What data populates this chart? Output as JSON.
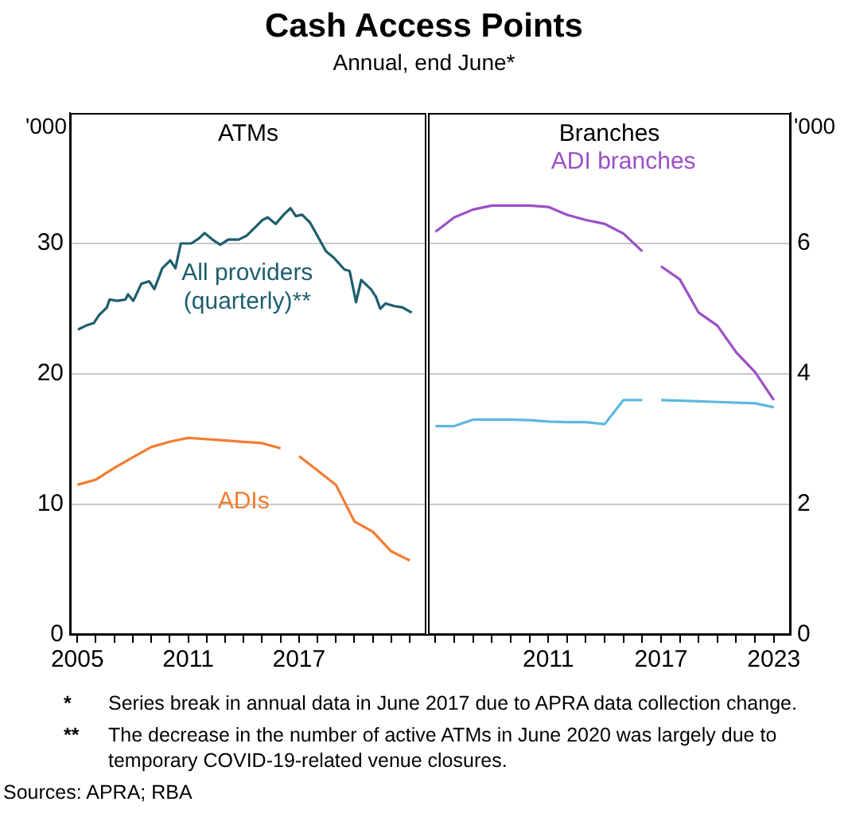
{
  "chart_data": [
    {
      "type": "other",
      "title": "Cash Access Points",
      "subtitle": "Annual, end June*",
      "annotations": [
        "* Series break in annual data in June 2017 due to APRA data collection change.",
        "** The decrease in the number of active ATMs in June 2020 was largely due to temporary COVID-19-related venue closures.",
        "Sources: APRA; RBA"
      ]
    },
    {
      "type": "line",
      "title": "ATMs",
      "ylabel": "'000",
      "xlim": [
        2004.6,
        2023.9
      ],
      "xticks": [
        2005,
        {
          "value": 2006,
          "label": null
        },
        {
          "value": 2007,
          "label": null
        },
        {
          "value": 2008,
          "label": null
        },
        {
          "value": 2009,
          "label": null
        },
        {
          "value": 2010,
          "label": null
        },
        2011,
        {
          "value": 2012,
          "label": null
        },
        {
          "value": 2013,
          "label": null
        },
        {
          "value": 2014,
          "label": null
        },
        {
          "value": 2015,
          "label": null
        },
        {
          "value": 2016,
          "label": null
        },
        2017,
        {
          "value": 2018,
          "label": null
        },
        {
          "value": 2019,
          "label": null
        },
        {
          "value": 2020,
          "label": null
        },
        {
          "value": 2021,
          "label": null
        },
        {
          "value": 2022,
          "label": null
        },
        {
          "value": 2023,
          "label": null
        }
      ],
      "ylim": [
        0,
        40
      ],
      "yticks": [
        0,
        10,
        20,
        30
      ],
      "grid": "y",
      "legend": false,
      "series": [
        {
          "name": "All providers (quarterly)**",
          "color": "#1d5e6e",
          "x": [
            2005.03,
            2005.46,
            2005.89,
            2006.17,
            2006.6,
            2006.74,
            2007.17,
            2007.6,
            2007.74,
            2008.03,
            2008.46,
            2008.89,
            2009.17,
            2009.6,
            2010.03,
            2010.31,
            2010.6,
            2011.17,
            2011.6,
            2011.89,
            2012.31,
            2012.74,
            2013.17,
            2013.74,
            2014.17,
            2014.6,
            2015.03,
            2015.31,
            2015.74,
            2016.17,
            2016.54,
            2016.83,
            2017.17,
            2017.6,
            2018.03,
            2018.46,
            2018.89,
            2019.46,
            2019.74,
            2020.09,
            2020.37,
            2020.89,
            2021.17,
            2021.4,
            2021.69,
            2022.17,
            2022.6,
            2023.11
          ],
          "values": [
            23.4,
            23.7,
            23.9,
            24.5,
            25.1,
            25.7,
            25.6,
            25.7,
            26.1,
            25.6,
            26.9,
            27.1,
            26.5,
            28.1,
            28.7,
            28.1,
            30.0,
            30.0,
            30.4,
            30.8,
            30.3,
            29.9,
            30.3,
            30.3,
            30.6,
            31.2,
            31.8,
            32.0,
            31.5,
            32.2,
            32.7,
            32.1,
            32.2,
            31.6,
            30.5,
            29.4,
            28.9,
            28.0,
            27.9,
            25.5,
            27.2,
            26.5,
            25.9,
            25.0,
            25.4,
            25.2,
            25.1,
            24.7
          ]
        },
        {
          "name": "ADIs",
          "color": "#f47c30",
          "x": [
            2005,
            2006,
            2007,
            2008,
            2009,
            2010,
            2011,
            2012,
            2013,
            2014,
            2015,
            2016,
            2016.5,
            2017,
            2018,
            2019,
            2020,
            2021,
            2022,
            2023
          ],
          "values": [
            11.5,
            11.9,
            12.8,
            13.6,
            14.4,
            14.8,
            15.1,
            15.0,
            14.9,
            14.8,
            14.7,
            14.3,
            null,
            13.7,
            12.6,
            11.5,
            8.7,
            7.9,
            6.4,
            5.7
          ]
        }
      ]
    },
    {
      "type": "line",
      "title": "Branches",
      "ylabel": "'000",
      "xlim": [
        2004.6,
        2023.9
      ],
      "xticks": [
        {
          "value": 2005,
          "label": null
        },
        {
          "value": 2006,
          "label": null
        },
        {
          "value": 2007,
          "label": null
        },
        {
          "value": 2008,
          "label": null
        },
        {
          "value": 2009,
          "label": null
        },
        {
          "value": 2010,
          "label": null
        },
        2011,
        {
          "value": 2012,
          "label": null
        },
        {
          "value": 2013,
          "label": null
        },
        {
          "value": 2014,
          "label": null
        },
        {
          "value": 2015,
          "label": null
        },
        {
          "value": 2016,
          "label": null
        },
        2017,
        {
          "value": 2018,
          "label": null
        },
        {
          "value": 2019,
          "label": null
        },
        {
          "value": 2020,
          "label": null
        },
        {
          "value": 2021,
          "label": null
        },
        {
          "value": 2022,
          "label": null
        },
        2023
      ],
      "ylim": [
        0,
        8
      ],
      "yticks": [
        0,
        2,
        4,
        6
      ],
      "grid": "y",
      "legend": false,
      "series": [
        {
          "name": "ADI branches",
          "color": "#9c4fc7",
          "x": [
            2005,
            2006,
            2007,
            2008,
            2009,
            2010,
            2011,
            2012,
            2013,
            2014,
            2015,
            2016,
            2016.5,
            2017,
            2018,
            2019,
            2020,
            2021,
            2022,
            2023
          ],
          "values": [
            6.18,
            6.4,
            6.52,
            6.58,
            6.58,
            6.58,
            6.56,
            6.44,
            6.36,
            6.3,
            6.15,
            5.88,
            null,
            5.65,
            5.45,
            4.94,
            4.74,
            4.33,
            4.03,
            3.6
          ]
        },
        {
          "color": "#5fb8e0",
          "x": [
            2005,
            2006,
            2007,
            2008,
            2009,
            2010,
            2011,
            2012,
            2013,
            2014,
            2015,
            2016,
            2016.5,
            2017,
            2018,
            2019,
            2020,
            2021,
            2022,
            2023
          ],
          "values": [
            3.2,
            3.2,
            3.3,
            3.3,
            3.3,
            3.29,
            3.27,
            3.26,
            3.26,
            3.23,
            3.6,
            3.6,
            null,
            3.6,
            3.59,
            3.58,
            3.57,
            3.56,
            3.55,
            3.49
          ]
        }
      ]
    }
  ]
}
